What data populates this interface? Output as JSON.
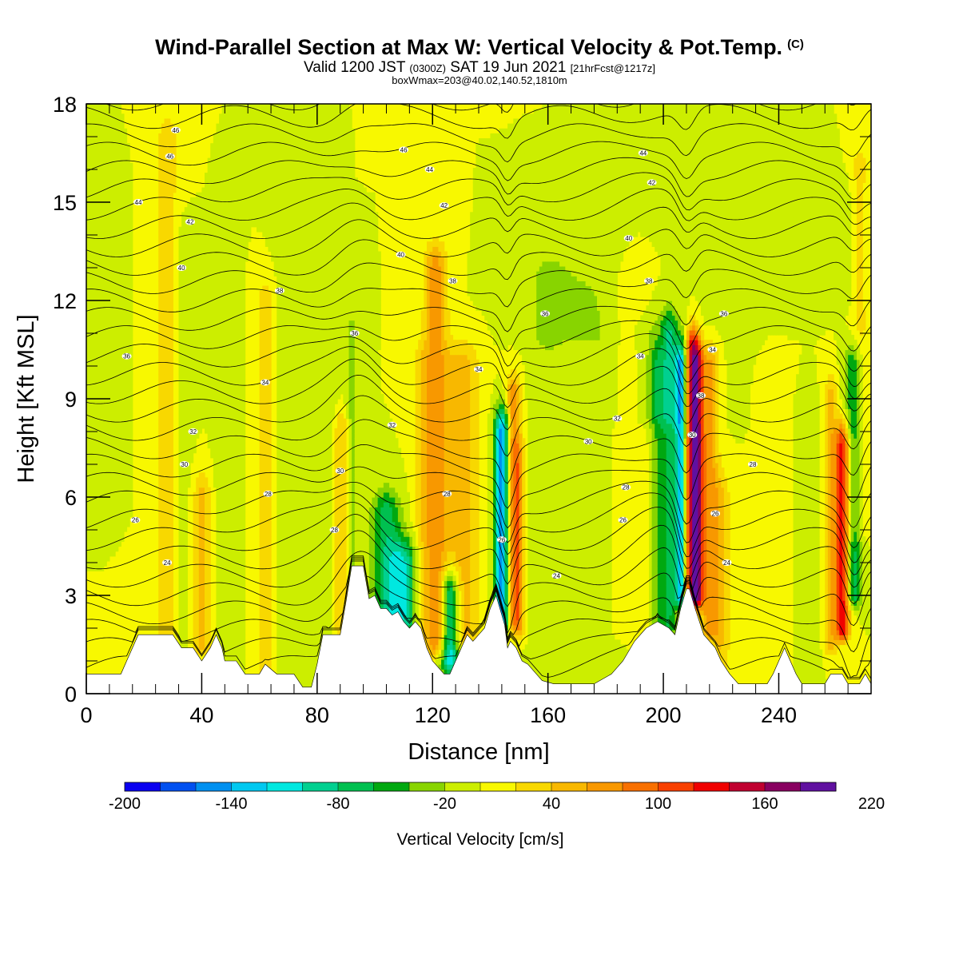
{
  "title": {
    "main": "Wind-Parallel Section at Max W: Vertical Velocity & Pot.Temp.",
    "copyright": "(C)",
    "valid_prefix": "Valid 1200 JST",
    "valid_utc": "(0300Z)",
    "valid_date": "SAT 19 Jun 2021",
    "forecast": "[21hrFcst@1217z]",
    "boxwmax": "boxWmax=203@40.02,140.52,1810m"
  },
  "chart_data": {
    "type": "heatmap",
    "xlabel": "Distance [nm]",
    "ylabel": "Height [Kft MSL]",
    "xlim": [
      0,
      272
    ],
    "ylim": [
      0,
      18
    ],
    "xticks": [
      0,
      40,
      80,
      120,
      160,
      200,
      240
    ],
    "yticks": [
      0,
      3,
      6,
      9,
      12,
      15,
      18
    ],
    "colorbar": {
      "label": "Vertical Velocity [cm/s]",
      "min": -200,
      "step": 20,
      "tick_labels": [
        "-200",
        "-140",
        "-80",
        "-20",
        "40",
        "100",
        "160",
        "220"
      ],
      "colors": [
        "#0a00f0",
        "#0050f0",
        "#0090f0",
        "#00c8f0",
        "#00e8e0",
        "#00d090",
        "#00c050",
        "#00a810",
        "#88d400",
        "#ccee00",
        "#f8f800",
        "#f8d800",
        "#f8b800",
        "#f89800",
        "#f87000",
        "#f84000",
        "#f00000",
        "#c00030",
        "#880060",
        "#6010a0"
      ]
    },
    "background_velocity": 0,
    "terrain_kft": [
      [
        0,
        0.6
      ],
      [
        12,
        0.6
      ],
      [
        14,
        1.0
      ],
      [
        16,
        1.4
      ],
      [
        18,
        1.8
      ],
      [
        30,
        1.8
      ],
      [
        33,
        1.4
      ],
      [
        37,
        1.4
      ],
      [
        40,
        1.0
      ],
      [
        43,
        1.4
      ],
      [
        45,
        1.8
      ],
      [
        47,
        1.4
      ],
      [
        48,
        1.0
      ],
      [
        52,
        1.0
      ],
      [
        55,
        0.6
      ],
      [
        60,
        0.6
      ],
      [
        62,
        0.9
      ],
      [
        66,
        0.6
      ],
      [
        72,
        0.6
      ],
      [
        75,
        0.2
      ],
      [
        78,
        0.2
      ],
      [
        80,
        0.9
      ],
      [
        82,
        1.8
      ],
      [
        88,
        1.8
      ],
      [
        90,
        2.8
      ],
      [
        92,
        3.9
      ],
      [
        96,
        3.9
      ],
      [
        98,
        2.9
      ],
      [
        100,
        3.0
      ],
      [
        102,
        2.6
      ],
      [
        104,
        2.6
      ],
      [
        106,
        2.4
      ],
      [
        108,
        2.5
      ],
      [
        110,
        2.2
      ],
      [
        112,
        2.0
      ],
      [
        114,
        2.2
      ],
      [
        116,
        2.0
      ],
      [
        118,
        1.4
      ],
      [
        120,
        1.0
      ],
      [
        122,
        0.8
      ],
      [
        124,
        0.6
      ],
      [
        126,
        0.6
      ],
      [
        128,
        1.0
      ],
      [
        130,
        1.4
      ],
      [
        132,
        1.8
      ],
      [
        134,
        1.6
      ],
      [
        136,
        1.8
      ],
      [
        138,
        2.0
      ],
      [
        140,
        2.6
      ],
      [
        142,
        3.0
      ],
      [
        144,
        2.4
      ],
      [
        145,
        2.1
      ],
      [
        146,
        1.4
      ],
      [
        147,
        1.6
      ],
      [
        149,
        1.4
      ],
      [
        151,
        1.0
      ],
      [
        153,
        0.9
      ],
      [
        156,
        0.6
      ],
      [
        158,
        0.4
      ],
      [
        162,
        0.3
      ],
      [
        168,
        0.3
      ],
      [
        176,
        0.3
      ],
      [
        182,
        0.6
      ],
      [
        186,
        1.0
      ],
      [
        190,
        1.6
      ],
      [
        194,
        2.0
      ],
      [
        198,
        2.2
      ],
      [
        202,
        2.0
      ],
      [
        204,
        1.8
      ],
      [
        206,
        2.6
      ],
      [
        208,
        3.2
      ],
      [
        209,
        3.2
      ],
      [
        211,
        2.6
      ],
      [
        214,
        1.8
      ],
      [
        218,
        1.4
      ],
      [
        220,
        1.0
      ],
      [
        223,
        0.6
      ],
      [
        226,
        0.3
      ],
      [
        230,
        0.3
      ],
      [
        234,
        0.3
      ],
      [
        236,
        0.3
      ],
      [
        238,
        0.6
      ],
      [
        240,
        1.0
      ],
      [
        242,
        1.4
      ],
      [
        244,
        1.0
      ],
      [
        246,
        0.6
      ],
      [
        248,
        0.3
      ],
      [
        252,
        0.3
      ],
      [
        256,
        0.3
      ],
      [
        258,
        0.6
      ],
      [
        262,
        0.6
      ],
      [
        264,
        0.3
      ],
      [
        268,
        0.3
      ],
      [
        270,
        0.6
      ],
      [
        272,
        0.3
      ]
    ],
    "velocity_features": [
      {
        "x": 6,
        "z0": 6,
        "z1": 15,
        "w": 4,
        "v": -5
      },
      {
        "x": 28,
        "z0": 1.8,
        "z1": 17,
        "w": 4,
        "v": 30
      },
      {
        "x": 33,
        "z0": 1.8,
        "z1": 14,
        "w": 3,
        "v": -10
      },
      {
        "x": 40,
        "z0": 1.5,
        "z1": 6,
        "w": 3,
        "v": 45
      },
      {
        "x": 48,
        "z0": 1,
        "z1": 14,
        "w": 3,
        "v": -15
      },
      {
        "x": 62,
        "z0": 0.8,
        "z1": 12,
        "w": 3,
        "v": 30
      },
      {
        "x": 70,
        "z0": 0.8,
        "z1": 16,
        "w": 4,
        "v": -10
      },
      {
        "x": 84,
        "z0": 2,
        "z1": 9,
        "w": 4,
        "v": -20
      },
      {
        "x": 88,
        "z0": 2,
        "z1": 8,
        "w": 3,
        "v": 45
      },
      {
        "x": 92,
        "z0": 4,
        "z1": 11,
        "w": 2,
        "v": -30
      },
      {
        "x": 104,
        "z0": 2.5,
        "z1": 5.5,
        "w": 5,
        "v": -70
      },
      {
        "x": 110,
        "z0": 2.2,
        "z1": 4,
        "w": 5,
        "v": -90
      },
      {
        "x": 116,
        "z0": 2,
        "z1": 10,
        "w": 3,
        "v": 30
      },
      {
        "x": 121,
        "z0": 1.5,
        "z1": 13,
        "w": 4,
        "v": 70
      },
      {
        "x": 126,
        "z0": 1,
        "z1": 3,
        "w": 3,
        "v": -120
      },
      {
        "x": 130,
        "z0": 1.8,
        "z1": 10,
        "w": 6,
        "v": 50
      },
      {
        "x": 144,
        "z0": 2.3,
        "z1": 8,
        "w": 2.5,
        "v": -150
      },
      {
        "x": 148,
        "z0": 2.3,
        "z1": 9,
        "w": 2.5,
        "v": 80
      },
      {
        "x": 150,
        "z0": 2,
        "z1": 7,
        "w": 2,
        "v": 50
      },
      {
        "x": 160,
        "z0": 0.5,
        "z1": 13,
        "w": 6,
        "v": -15
      },
      {
        "x": 178,
        "z0": 0.5,
        "z1": 12,
        "w": 8,
        "v": -10
      },
      {
        "x": 188,
        "z0": 2,
        "z1": 12,
        "w": 6,
        "v": 20
      },
      {
        "x": 198,
        "z0": 2.2,
        "z1": 10,
        "w": 2.5,
        "v": -40
      },
      {
        "x": 202,
        "z0": 2,
        "z1": 11,
        "w": 2.5,
        "v": -60
      },
      {
        "x": 206,
        "z0": 3,
        "z1": 10,
        "w": 2,
        "v": -130
      },
      {
        "x": 210,
        "z0": 3,
        "z1": 10.5,
        "w": 2.5,
        "v": 150
      },
      {
        "x": 212,
        "z0": 3,
        "z1": 10,
        "w": 2,
        "v": 100
      },
      {
        "x": 216,
        "z0": 2,
        "z1": 10,
        "w": 3,
        "v": 70
      },
      {
        "x": 220,
        "z0": 1,
        "z1": 6,
        "w": 3,
        "v": 40
      },
      {
        "x": 238,
        "z0": 0.5,
        "z1": 9,
        "w": 4,
        "v": 10
      },
      {
        "x": 250,
        "z0": 1,
        "z1": 8,
        "w": 3,
        "v": -20
      },
      {
        "x": 258,
        "z0": 1.5,
        "z1": 9,
        "w": 2,
        "v": 50
      },
      {
        "x": 262,
        "z0": 2,
        "z1": 7.5,
        "w": 2.5,
        "v": 140
      },
      {
        "x": 266,
        "z0": 3,
        "z1": 10,
        "w": 3,
        "v": -70
      },
      {
        "x": 268,
        "z0": 5,
        "z1": 16,
        "w": 3,
        "v": 30
      },
      {
        "x": 200,
        "z0": 8.5,
        "z1": 11,
        "w": 14,
        "v": -25
      },
      {
        "x": 166,
        "z0": 11,
        "z1": 12.5,
        "w": 14,
        "v": -20
      },
      {
        "x": 250,
        "z0": 12,
        "z1": 15,
        "w": 20,
        "v": -15
      }
    ],
    "isentropes": {
      "start_k": 294,
      "step_k": 0.7,
      "count": 33,
      "base_kft": 0.8,
      "spacing_kft": 0.56,
      "mountain_waves": [
        {
          "x": 94,
          "amp_kft": 1.2,
          "width": 10
        },
        {
          "x": 146,
          "amp_kft": -1.4,
          "width": 3
        },
        {
          "x": 208,
          "amp_kft": -1.8,
          "width": 4
        },
        {
          "x": 266,
          "amp_kft": -1.4,
          "width": 4
        },
        {
          "x": 200,
          "amp_kft": 0.8,
          "width": 14
        }
      ]
    },
    "contour_labels": [
      {
        "text": "46",
        "x": 31,
        "z": 17.2
      },
      {
        "text": "46",
        "x": 29,
        "z": 16.4
      },
      {
        "text": "44",
        "x": 18,
        "z": 15.0
      },
      {
        "text": "42",
        "x": 36,
        "z": 14.4
      },
      {
        "text": "40",
        "x": 33,
        "z": 13.0
      },
      {
        "text": "38",
        "x": 67,
        "z": 12.3
      },
      {
        "text": "36",
        "x": 14,
        "z": 10.3
      },
      {
        "text": "34",
        "x": 62,
        "z": 9.5
      },
      {
        "text": "32",
        "x": 37,
        "z": 8.0
      },
      {
        "text": "30",
        "x": 34,
        "z": 7.0
      },
      {
        "text": "30",
        "x": 88,
        "z": 6.8
      },
      {
        "text": "28",
        "x": 63,
        "z": 6.1
      },
      {
        "text": "26",
        "x": 17,
        "z": 5.3
      },
      {
        "text": "24",
        "x": 28,
        "z": 4.0
      },
      {
        "text": "28",
        "x": 86,
        "z": 5.0
      },
      {
        "text": "36",
        "x": 93,
        "z": 11.0
      },
      {
        "text": "46",
        "x": 110,
        "z": 16.6
      },
      {
        "text": "44",
        "x": 119,
        "z": 16.0
      },
      {
        "text": "42",
        "x": 124,
        "z": 14.9
      },
      {
        "text": "40",
        "x": 109,
        "z": 13.4
      },
      {
        "text": "38",
        "x": 127,
        "z": 12.6
      },
      {
        "text": "32",
        "x": 106,
        "z": 8.2
      },
      {
        "text": "34",
        "x": 136,
        "z": 9.9
      },
      {
        "text": "28",
        "x": 125,
        "z": 6.1
      },
      {
        "text": "26",
        "x": 144,
        "z": 4.7
      },
      {
        "text": "36",
        "x": 159,
        "z": 11.6
      },
      {
        "text": "24",
        "x": 163,
        "z": 3.6
      },
      {
        "text": "44",
        "x": 193,
        "z": 16.5
      },
      {
        "text": "42",
        "x": 196,
        "z": 15.6
      },
      {
        "text": "40",
        "x": 188,
        "z": 13.9
      },
      {
        "text": "38",
        "x": 195,
        "z": 12.6
      },
      {
        "text": "34",
        "x": 192,
        "z": 10.3
      },
      {
        "text": "32",
        "x": 184,
        "z": 8.4
      },
      {
        "text": "30",
        "x": 174,
        "z": 7.7
      },
      {
        "text": "28",
        "x": 187,
        "z": 6.3
      },
      {
        "text": "26",
        "x": 186,
        "z": 5.3
      },
      {
        "text": "30",
        "x": 210,
        "z": 7.9
      },
      {
        "text": "38",
        "x": 213,
        "z": 9.1
      },
      {
        "text": "34",
        "x": 217,
        "z": 10.5
      },
      {
        "text": "36",
        "x": 221,
        "z": 11.6
      },
      {
        "text": "28",
        "x": 231,
        "z": 7.0
      },
      {
        "text": "26",
        "x": 218,
        "z": 5.5
      },
      {
        "text": "24",
        "x": 222,
        "z": 4.0
      }
    ]
  }
}
